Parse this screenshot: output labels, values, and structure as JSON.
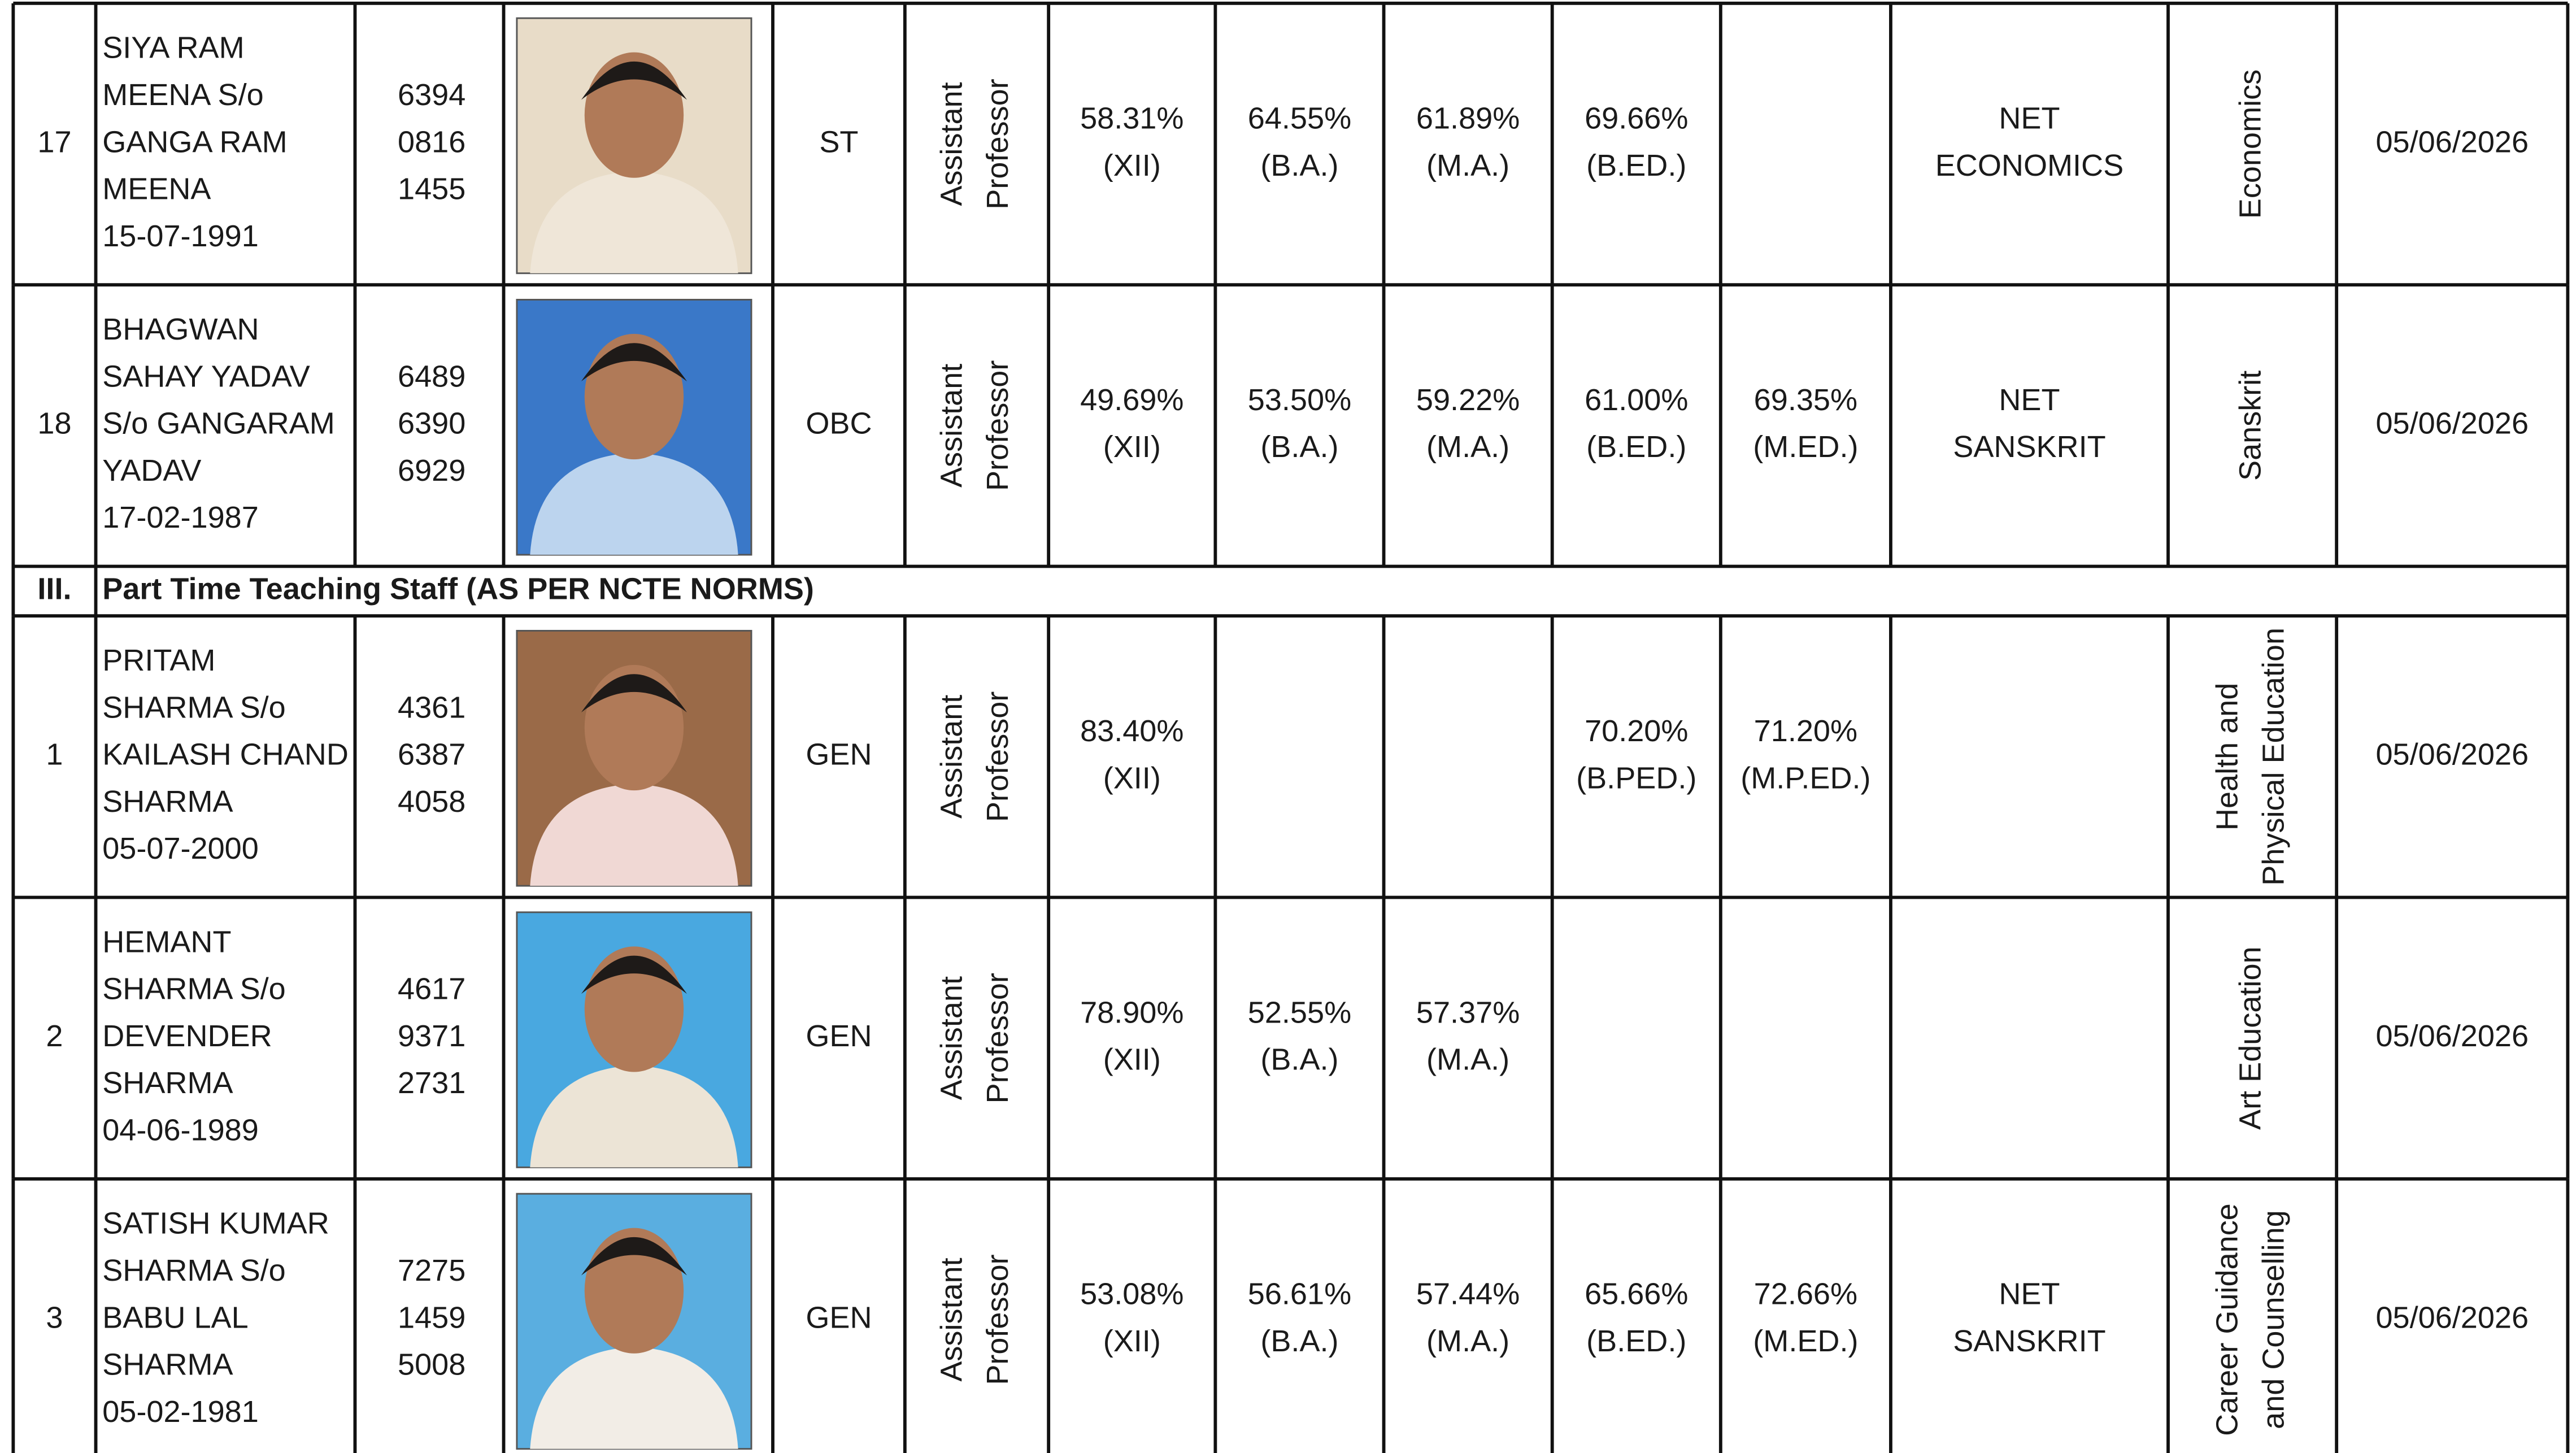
{
  "groups": [
    {
      "rows": [
        {
          "sno": "17",
          "name": [
            "SIYA RAM",
            "MEENA S/o",
            "GANGA RAM",
            "MEENA",
            "15-07-1991"
          ],
          "phone": [
            "6394",
            "0816",
            "1455"
          ],
          "category": "ST",
          "designation": [
            "Assistant",
            "Professor"
          ],
          "quals": [
            [
              "58.31%",
              "(XII)"
            ],
            [
              "64.55%",
              "(B.A.)"
            ],
            [
              "61.89%",
              "(M.A.)"
            ],
            [
              "69.66%",
              "(B.ED.)"
            ],
            null,
            [
              "NET",
              "ECONOMICS"
            ]
          ],
          "subject": [
            "Economics"
          ],
          "date": "05/06/2026"
        },
        {
          "sno": "18",
          "name": [
            "BHAGWAN",
            "SAHAY YADAV",
            "S/o GANGARAM",
            "YADAV",
            "17-02-1987"
          ],
          "phone": [
            "6489",
            "6390",
            "6929"
          ],
          "category": "OBC",
          "designation": [
            "Assistant",
            "Professor"
          ],
          "quals": [
            [
              "49.69%",
              "(XII)"
            ],
            [
              "53.50%",
              "(B.A.)"
            ],
            [
              "59.22%",
              "(M.A.)"
            ],
            [
              "61.00%",
              "(B.ED.)"
            ],
            [
              "69.35%",
              "(M.ED.)"
            ],
            [
              "NET",
              "SANSKRIT"
            ]
          ],
          "subject": [
            "Sanskrit"
          ],
          "date": "05/06/2026"
        }
      ]
    },
    {
      "number": "III.",
      "title": "Part Time Teaching Staff (AS PER NCTE NORMS)",
      "rows": [
        {
          "sno": "1",
          "name": [
            "PRITAM",
            "SHARMA S/o",
            "KAILASH CHAND",
            "SHARMA",
            "05-07-2000"
          ],
          "phone": [
            "4361",
            "6387",
            "4058"
          ],
          "category": "GEN",
          "designation": [
            "Assistant",
            "Professor"
          ],
          "quals": [
            [
              "83.40%",
              "(XII)"
            ],
            null,
            null,
            [
              "70.20%",
              "(B.PED.)"
            ],
            [
              "71.20%",
              "(M.P.ED.)"
            ],
            null
          ],
          "subject": [
            "Health and",
            "Physical Education"
          ],
          "date": "05/06/2026"
        },
        {
          "sno": "2",
          "name": [
            "HEMANT",
            "SHARMA S/o",
            "DEVENDER",
            "SHARMA",
            "04-06-1989"
          ],
          "phone": [
            "4617",
            "9371",
            "2731"
          ],
          "category": "GEN",
          "designation": [
            "Assistant",
            "Professor"
          ],
          "quals": [
            [
              "78.90%",
              "(XII)"
            ],
            [
              "52.55%",
              "(B.A.)"
            ],
            [
              "57.37%",
              "(M.A.)"
            ],
            null,
            null,
            null
          ],
          "subject": [
            "Art Education"
          ],
          "date": "05/06/2026"
        },
        {
          "sno": "3",
          "name": [
            "SATISH KUMAR",
            "SHARMA S/o",
            "BABU LAL",
            "SHARMA",
            "05-02-1981"
          ],
          "phone": [
            "7275",
            "1459",
            "5008"
          ],
          "category": "GEN",
          "designation": [
            "Assistant",
            "Professor"
          ],
          "quals": [
            [
              "53.08%",
              "(XII)"
            ],
            [
              "56.61%",
              "(B.A.)"
            ],
            [
              "57.44%",
              "(M.A.)"
            ],
            [
              "65.66%",
              "(B.ED.)"
            ],
            [
              "72.66%",
              "(M.ED.)"
            ],
            [
              "NET",
              "SANSKRIT"
            ]
          ],
          "subject": [
            "Career Guidance",
            "and Counselling"
          ],
          "date": "05/06/2026"
        }
      ]
    }
  ]
}
